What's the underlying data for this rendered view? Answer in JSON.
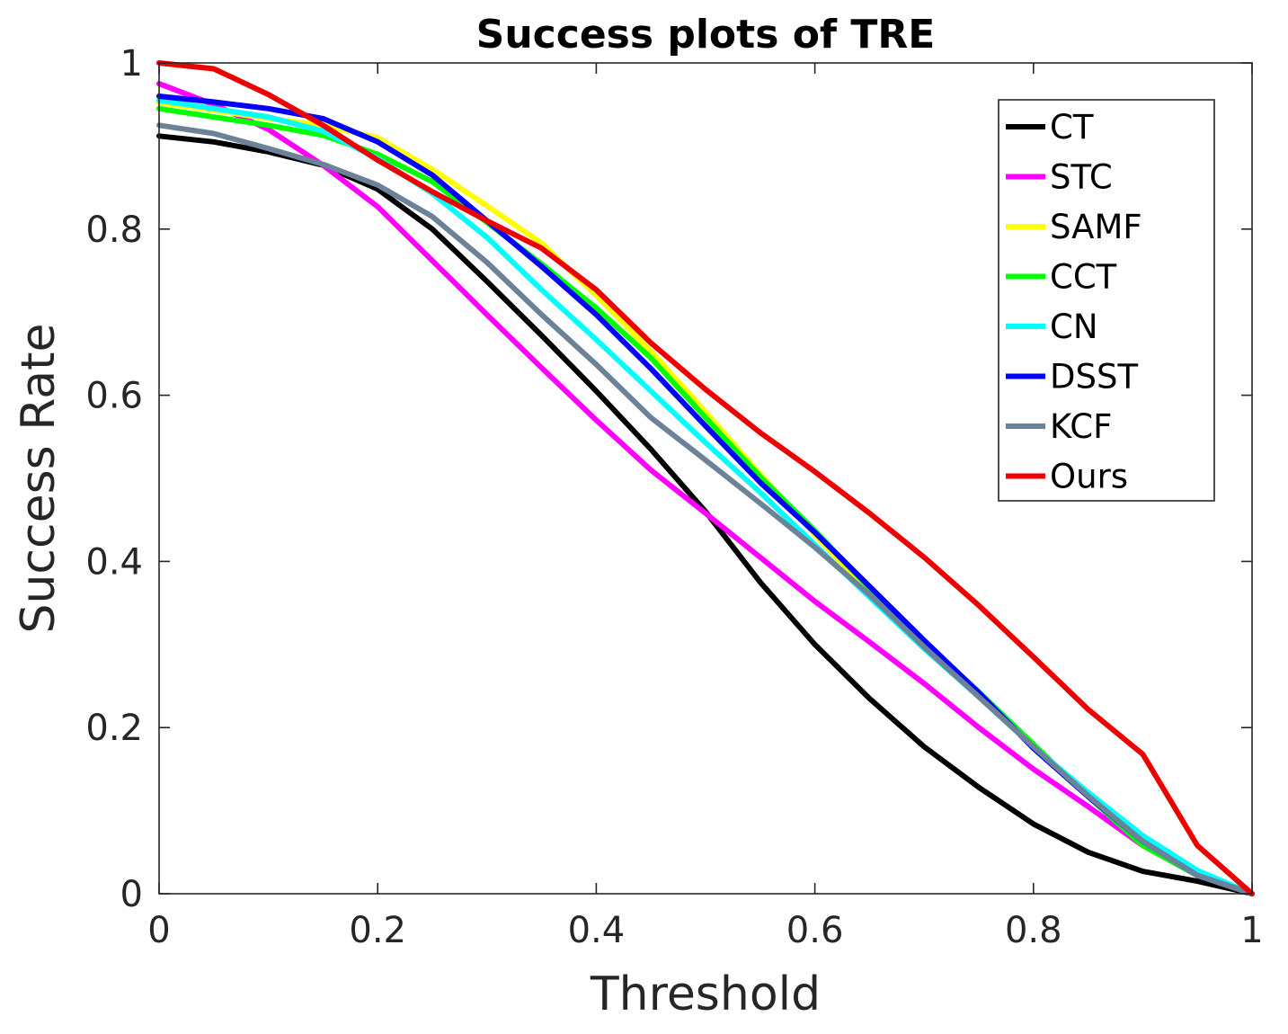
{
  "chart_data": {
    "type": "line",
    "title": "Success plots of TRE",
    "xlabel": "Threshold",
    "ylabel": "Success Rate",
    "xlim": [
      0,
      1
    ],
    "ylim": [
      0,
      1
    ],
    "xticks": [
      0,
      0.2,
      0.4,
      0.6,
      0.8,
      1
    ],
    "yticks": [
      0,
      0.2,
      0.4,
      0.6,
      0.8,
      1
    ],
    "xtick_labels": [
      "0",
      "0.2",
      "0.4",
      "0.6",
      "0.8",
      "1"
    ],
    "ytick_labels": [
      "0",
      "0.2",
      "0.4",
      "0.6",
      "0.8",
      "1"
    ],
    "grid": false,
    "legend_position": "top-right",
    "x": [
      0,
      0.05,
      0.1,
      0.15,
      0.2,
      0.25,
      0.3,
      0.35,
      0.4,
      0.45,
      0.5,
      0.55,
      0.6,
      0.65,
      0.7,
      0.75,
      0.8,
      0.85,
      0.9,
      0.95,
      1
    ],
    "series": [
      {
        "name": "CT",
        "color": "#000000",
        "values": [
          0.912,
          0.905,
          0.893,
          0.877,
          0.848,
          0.8,
          0.737,
          0.672,
          0.605,
          0.535,
          0.46,
          0.375,
          0.3,
          0.235,
          0.177,
          0.128,
          0.084,
          0.05,
          0.027,
          0.015,
          0.0
        ]
      },
      {
        "name": "STC",
        "color": "#ff00ff",
        "values": [
          0.975,
          0.95,
          0.92,
          0.877,
          0.827,
          0.762,
          0.697,
          0.633,
          0.57,
          0.51,
          0.458,
          0.405,
          0.352,
          0.303,
          0.253,
          0.2,
          0.15,
          0.105,
          0.058,
          0.022,
          0.0
        ]
      },
      {
        "name": "SAMF",
        "color": "#ffff00",
        "values": [
          0.952,
          0.943,
          0.933,
          0.925,
          0.91,
          0.872,
          0.828,
          0.783,
          0.72,
          0.653,
          0.58,
          0.505,
          0.432,
          0.362,
          0.298,
          0.238,
          0.177,
          0.117,
          0.06,
          0.022,
          0.0
        ]
      },
      {
        "name": "CCT",
        "color": "#00ff00",
        "values": [
          0.945,
          0.935,
          0.925,
          0.913,
          0.89,
          0.857,
          0.808,
          0.758,
          0.705,
          0.645,
          0.573,
          0.502,
          0.437,
          0.368,
          0.303,
          0.243,
          0.18,
          0.117,
          0.058,
          0.022,
          0.0
        ]
      },
      {
        "name": "CN",
        "color": "#00ffff",
        "values": [
          0.955,
          0.945,
          0.935,
          0.918,
          0.885,
          0.843,
          0.79,
          0.727,
          0.667,
          0.605,
          0.543,
          0.483,
          0.42,
          0.357,
          0.295,
          0.237,
          0.177,
          0.122,
          0.07,
          0.028,
          0.0
        ]
      },
      {
        "name": "DSST",
        "color": "#0000ff",
        "values": [
          0.96,
          0.953,
          0.945,
          0.933,
          0.905,
          0.865,
          0.81,
          0.755,
          0.697,
          0.632,
          0.563,
          0.495,
          0.435,
          0.37,
          0.305,
          0.242,
          0.175,
          0.117,
          0.063,
          0.022,
          0.0
        ]
      },
      {
        "name": "KCF",
        "color": "#6b8299",
        "values": [
          0.925,
          0.915,
          0.897,
          0.878,
          0.853,
          0.815,
          0.76,
          0.697,
          0.637,
          0.573,
          0.522,
          0.47,
          0.417,
          0.36,
          0.297,
          0.237,
          0.177,
          0.118,
          0.063,
          0.022,
          0.0
        ]
      },
      {
        "name": "Ours",
        "color": "#ee0000",
        "values": [
          1.0,
          0.993,
          0.962,
          0.925,
          0.883,
          0.845,
          0.81,
          0.777,
          0.727,
          0.663,
          0.607,
          0.555,
          0.508,
          0.458,
          0.405,
          0.347,
          0.285,
          0.222,
          0.168,
          0.058,
          0.0
        ]
      }
    ]
  }
}
